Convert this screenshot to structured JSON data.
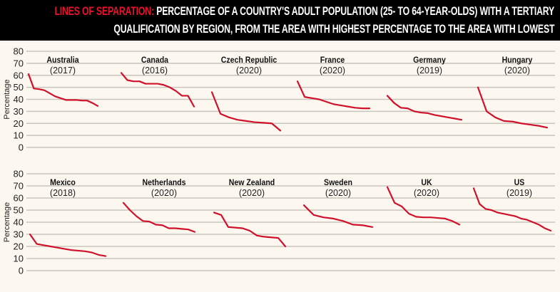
{
  "header": {
    "title_red": "LINES OF SEPARATION:",
    "title_line1": "PERCENTAGE OF A COUNTRY'S ADULT POPULATION (25- TO 64-YEAR-OLDS) WITH A TERTIARY",
    "title_line2": "QUALIFICATION BY REGION, FROM THE AREA WITH HIGHEST PERCENTAGE TO THE AREA WITH LOWEST"
  },
  "colors": {
    "line": "#d0112b",
    "accent": "#e8112d",
    "background": "#fcf8f0",
    "grid": "#c9c5bd",
    "header_bg": "#000000"
  },
  "chart_data": [
    {
      "type": "line",
      "title": "Australia",
      "subtitle": "(2017)",
      "ylabel": "Percentage",
      "ylim": [
        0,
        80
      ],
      "yticks": [
        0,
        10,
        20,
        30,
        40,
        50,
        60,
        70,
        80
      ],
      "grid": true,
      "values": [
        61,
        49,
        48.5,
        47.5,
        45,
        42.5,
        41,
        39.5,
        39.5,
        39.5,
        39,
        39,
        37,
        34.5
      ]
    },
    {
      "type": "line",
      "title": "Canada",
      "subtitle": "(2016)",
      "ylim": [
        0,
        80
      ],
      "grid": true,
      "values": [
        62,
        56,
        55,
        55,
        53,
        53,
        53,
        52,
        50,
        47,
        43,
        43,
        34
      ]
    },
    {
      "type": "line",
      "title": "Czech Republic",
      "subtitle": "(2020)",
      "ylim": [
        0,
        80
      ],
      "grid": true,
      "values": [
        46,
        28,
        25,
        23,
        22,
        21,
        20.5,
        20,
        14
      ]
    },
    {
      "type": "line",
      "title": "France",
      "subtitle": "(2020)",
      "ylim": [
        0,
        80
      ],
      "grid": true,
      "values": [
        55,
        42,
        41,
        40,
        38,
        36,
        35,
        34,
        33,
        32.5,
        32.5
      ]
    },
    {
      "type": "line",
      "title": "Germany",
      "subtitle": "(2019)",
      "ylim": [
        0,
        80
      ],
      "grid": true,
      "values": [
        43,
        37,
        33,
        32.5,
        30,
        29,
        28.5,
        27,
        26,
        25,
        24,
        23
      ]
    },
    {
      "type": "line",
      "title": "Hungary",
      "subtitle": "(2020)",
      "ylim": [
        0,
        80
      ],
      "grid": true,
      "values": [
        50,
        30,
        25,
        22,
        21.5,
        20,
        19,
        18,
        16.5
      ]
    },
    {
      "type": "line",
      "title": "Mexico",
      "subtitle": "(2018)",
      "ylabel": "Percentage",
      "ylim": [
        0,
        80
      ],
      "yticks": [
        0,
        10,
        20,
        30,
        40,
        50,
        60,
        70,
        80
      ],
      "grid": true,
      "values": [
        30,
        22,
        21,
        20,
        19,
        18,
        17,
        16.5,
        16,
        15,
        13,
        12
      ]
    },
    {
      "type": "line",
      "title": "Netherlands",
      "subtitle": "(2020)",
      "ylim": [
        0,
        80
      ],
      "grid": true,
      "values": [
        56,
        50,
        45,
        41,
        40.5,
        38,
        37.5,
        35,
        35,
        34.5,
        34,
        32
      ]
    },
    {
      "type": "line",
      "title": "New Zealand",
      "subtitle": "(2020)",
      "ylim": [
        0,
        80
      ],
      "grid": true,
      "values": [
        48,
        46,
        36,
        35.5,
        35,
        33,
        29,
        28,
        27.5,
        27,
        20
      ]
    },
    {
      "type": "line",
      "title": "Sweden",
      "subtitle": "(2020)",
      "ylim": [
        0,
        80
      ],
      "grid": true,
      "values": [
        54,
        46,
        44,
        43,
        41,
        38,
        37.5,
        36
      ]
    },
    {
      "type": "line",
      "title": "UK",
      "subtitle": "(2020)",
      "ylim": [
        0,
        80
      ],
      "grid": true,
      "values": [
        69,
        56,
        53,
        47,
        44.5,
        44,
        44,
        43.5,
        43,
        41,
        38
      ]
    },
    {
      "type": "line",
      "title": "US",
      "subtitle": "(2019)",
      "ylim": [
        0,
        80
      ],
      "grid": true,
      "values": [
        68,
        55,
        51,
        50,
        48,
        47,
        46,
        45,
        43,
        42,
        40,
        38,
        35,
        33
      ]
    }
  ]
}
